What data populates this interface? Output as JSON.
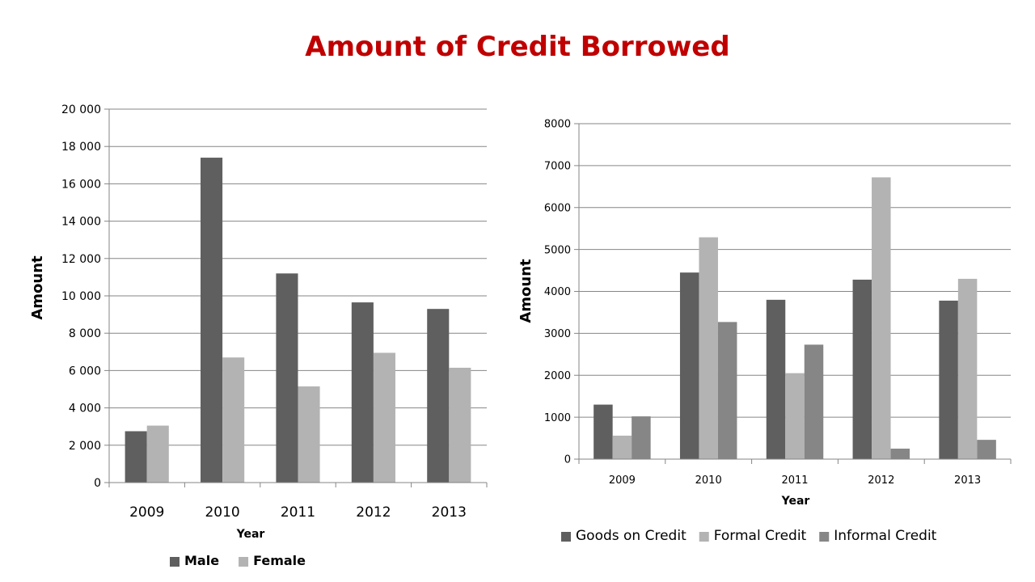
{
  "page": {
    "title": "Amount of Credit Borrowed"
  },
  "colors": {
    "title": "#c00000",
    "male": "#5f5f5f",
    "female": "#b3b3b3",
    "goods": "#5f5f5f",
    "formal": "#b3b3b3",
    "informal": "#868686",
    "grid": "#868686"
  },
  "chart_data": [
    {
      "type": "bar",
      "title": "",
      "xlabel": "Year",
      "ylabel": "Amount",
      "categories": [
        "2009",
        "2010",
        "2011",
        "2012",
        "2013"
      ],
      "series": [
        {
          "name": "Male",
          "values": [
            2750,
            17400,
            11200,
            9650,
            9300
          ]
        },
        {
          "name": "Female",
          "values": [
            3050,
            6700,
            5150,
            6950,
            6150
          ]
        }
      ],
      "ylim": [
        0,
        20000
      ],
      "yticks": [
        "0",
        "2 000",
        "4 000",
        "6 000",
        "8 000",
        "10 000",
        "12 000",
        "14 000",
        "16 000",
        "18 000",
        "20 000"
      ],
      "grid": true,
      "legend": "bottom"
    },
    {
      "type": "bar",
      "title": "",
      "xlabel": "Year",
      "ylabel": "Amount",
      "categories": [
        "2009",
        "2010",
        "2011",
        "2012",
        "2013"
      ],
      "series": [
        {
          "name": "Goods on Credit",
          "values": [
            1300,
            4450,
            3800,
            4280,
            3780
          ]
        },
        {
          "name": "Formal Credit",
          "values": [
            560,
            5290,
            2050,
            6720,
            4300
          ]
        },
        {
          "name": "Informal Credit",
          "values": [
            1020,
            3270,
            2730,
            250,
            460
          ]
        }
      ],
      "ylim": [
        0,
        8000
      ],
      "yticks": [
        "0",
        "1000",
        "2000",
        "3000",
        "4000",
        "5000",
        "6000",
        "7000",
        "8000"
      ],
      "grid": true,
      "legend": "bottom"
    }
  ]
}
